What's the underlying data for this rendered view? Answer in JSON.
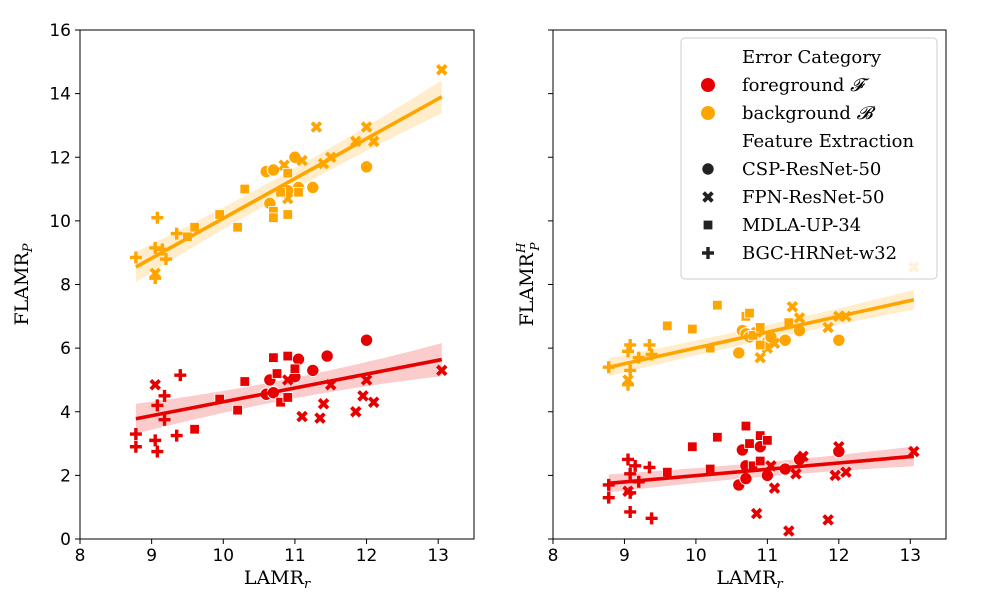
{
  "colors": {
    "foreground": "#e60000",
    "background": "#ffa500"
  },
  "chart_data": [
    {
      "type": "scatter",
      "panel": "left",
      "xlabel": "LAMR",
      "xlabel_sub": "r",
      "ylabel": "FLAMR",
      "ylabel_sub": "P",
      "xlim": [
        8,
        13.5
      ],
      "ylim": [
        0,
        16
      ],
      "xticks": [
        "8",
        "9",
        "10",
        "11",
        "12",
        "13"
      ],
      "yticks": [
        "0",
        "2",
        "4",
        "6",
        "8",
        "10",
        "12",
        "14",
        "16"
      ],
      "regression": {
        "foreground": {
          "x": [
            8.78,
            13.05
          ],
          "y": [
            3.78,
            5.64
          ]
        },
        "background": {
          "x": [
            8.78,
            13.05
          ],
          "y": [
            8.55,
            13.9
          ]
        }
      },
      "points": {
        "foreground": [
          [
            "circle",
            10.6,
            4.55
          ],
          [
            "circle",
            10.65,
            5.0
          ],
          [
            "circle",
            10.7,
            4.6
          ],
          [
            "circle",
            11.05,
            5.65
          ],
          [
            "circle",
            11.25,
            5.3
          ],
          [
            "circle",
            11.45,
            5.75
          ],
          [
            "circle",
            12.0,
            6.25
          ],
          [
            "circle",
            11.0,
            5.1
          ],
          [
            "cross",
            9.05,
            4.85
          ],
          [
            "cross",
            10.9,
            5.0
          ],
          [
            "cross",
            11.1,
            3.85
          ],
          [
            "cross",
            11.35,
            3.8
          ],
          [
            "cross",
            11.4,
            4.25
          ],
          [
            "cross",
            11.5,
            4.85
          ],
          [
            "cross",
            11.85,
            4.0
          ],
          [
            "cross",
            11.95,
            4.5
          ],
          [
            "cross",
            12.0,
            5.0
          ],
          [
            "cross",
            12.1,
            4.3
          ],
          [
            "cross",
            13.05,
            5.3
          ],
          [
            "square",
            9.6,
            3.45
          ],
          [
            "square",
            9.95,
            4.4
          ],
          [
            "square",
            10.2,
            4.05
          ],
          [
            "square",
            10.3,
            4.95
          ],
          [
            "square",
            10.7,
            5.7
          ],
          [
            "square",
            10.75,
            5.2
          ],
          [
            "square",
            10.8,
            4.3
          ],
          [
            "square",
            10.9,
            5.75
          ],
          [
            "square",
            10.9,
            4.45
          ],
          [
            "square",
            11.0,
            5.35
          ],
          [
            "plus",
            8.78,
            3.3
          ],
          [
            "plus",
            8.78,
            2.9
          ],
          [
            "plus",
            9.05,
            3.1
          ],
          [
            "plus",
            9.08,
            2.75
          ],
          [
            "plus",
            9.08,
            4.2
          ],
          [
            "plus",
            9.18,
            4.5
          ],
          [
            "plus",
            9.18,
            3.75
          ],
          [
            "plus",
            9.35,
            3.25
          ],
          [
            "plus",
            9.4,
            5.15
          ]
        ],
        "background": [
          [
            "circle",
            10.6,
            11.55
          ],
          [
            "circle",
            10.65,
            10.55
          ],
          [
            "circle",
            10.7,
            11.6
          ],
          [
            "circle",
            11.0,
            12.0
          ],
          [
            "circle",
            11.05,
            11.05
          ],
          [
            "circle",
            11.25,
            11.05
          ],
          [
            "circle",
            12.0,
            11.7
          ],
          [
            "circle",
            10.9,
            10.95
          ],
          [
            "cross",
            9.05,
            8.35
          ],
          [
            "cross",
            10.85,
            11.75
          ],
          [
            "cross",
            11.1,
            11.9
          ],
          [
            "cross",
            11.3,
            12.95
          ],
          [
            "cross",
            11.4,
            11.8
          ],
          [
            "cross",
            11.5,
            12.0
          ],
          [
            "cross",
            11.85,
            12.5
          ],
          [
            "cross",
            12.0,
            12.95
          ],
          [
            "cross",
            12.1,
            12.5
          ],
          [
            "cross",
            13.05,
            14.75
          ],
          [
            "cross",
            10.9,
            10.7
          ],
          [
            "square",
            9.5,
            9.5
          ],
          [
            "square",
            9.6,
            9.8
          ],
          [
            "square",
            9.95,
            10.2
          ],
          [
            "square",
            10.2,
            9.8
          ],
          [
            "square",
            10.3,
            11.0
          ],
          [
            "square",
            10.7,
            10.3
          ],
          [
            "square",
            10.7,
            10.1
          ],
          [
            "square",
            10.8,
            10.9
          ],
          [
            "square",
            10.9,
            11.5
          ],
          [
            "square",
            10.9,
            10.2
          ],
          [
            "square",
            11.05,
            10.9
          ],
          [
            "plus",
            8.78,
            8.85
          ],
          [
            "plus",
            9.05,
            9.15
          ],
          [
            "plus",
            9.05,
            8.2
          ],
          [
            "plus",
            9.08,
            10.1
          ],
          [
            "plus",
            9.15,
            9.1
          ],
          [
            "plus",
            9.2,
            8.8
          ],
          [
            "plus",
            9.35,
            9.6
          ]
        ]
      }
    },
    {
      "type": "scatter",
      "panel": "right",
      "xlabel": "LAMR",
      "xlabel_sub": "r",
      "ylabel": "FLAMR",
      "ylabel_sub": "P",
      "ylabel_sup": "H",
      "xlim": [
        8,
        13.5
      ],
      "ylim": [
        0,
        16
      ],
      "xticks": [
        "8",
        "9",
        "10",
        "11",
        "12",
        "13"
      ],
      "regression": {
        "foreground": {
          "x": [
            8.78,
            13.05
          ],
          "y": [
            1.75,
            2.6
          ]
        },
        "background": {
          "x": [
            8.78,
            13.05
          ],
          "y": [
            5.4,
            7.52
          ]
        }
      },
      "points": {
        "foreground": [
          [
            "circle",
            10.6,
            1.7
          ],
          [
            "circle",
            10.65,
            2.8
          ],
          [
            "circle",
            10.7,
            1.9
          ],
          [
            "circle",
            10.9,
            2.9
          ],
          [
            "circle",
            11.0,
            2.0
          ],
          [
            "circle",
            11.25,
            2.2
          ],
          [
            "circle",
            11.45,
            2.5
          ],
          [
            "circle",
            12.0,
            2.75
          ],
          [
            "circle",
            10.7,
            2.3
          ],
          [
            "cross",
            9.05,
            1.5
          ],
          [
            "cross",
            10.85,
            0.8
          ],
          [
            "cross",
            11.1,
            1.6
          ],
          [
            "cross",
            11.3,
            0.25
          ],
          [
            "cross",
            11.4,
            2.05
          ],
          [
            "cross",
            11.5,
            2.6
          ],
          [
            "cross",
            11.85,
            0.6
          ],
          [
            "cross",
            11.95,
            2.0
          ],
          [
            "cross",
            12.0,
            2.9
          ],
          [
            "cross",
            12.1,
            2.1
          ],
          [
            "cross",
            13.05,
            2.75
          ],
          [
            "cross",
            11.05,
            2.3
          ],
          [
            "square",
            9.95,
            2.9
          ],
          [
            "square",
            10.3,
            3.2
          ],
          [
            "square",
            10.7,
            3.55
          ],
          [
            "square",
            10.75,
            3.0
          ],
          [
            "square",
            10.8,
            2.3
          ],
          [
            "square",
            10.9,
            3.25
          ],
          [
            "square",
            10.9,
            2.45
          ],
          [
            "square",
            11.0,
            3.1
          ],
          [
            "square",
            10.2,
            2.2
          ],
          [
            "square",
            9.6,
            2.1
          ],
          [
            "plus",
            8.78,
            1.3
          ],
          [
            "plus",
            8.78,
            1.7
          ],
          [
            "plus",
            9.05,
            2.5
          ],
          [
            "plus",
            9.08,
            0.85
          ],
          [
            "plus",
            9.08,
            1.45
          ],
          [
            "plus",
            9.15,
            2.3
          ],
          [
            "plus",
            9.2,
            1.8
          ],
          [
            "plus",
            9.35,
            2.25
          ],
          [
            "plus",
            9.38,
            0.65
          ],
          [
            "plus",
            9.08,
            2.05
          ]
        ],
        "background": [
          [
            "circle",
            10.6,
            5.85
          ],
          [
            "circle",
            10.65,
            6.55
          ],
          [
            "circle",
            10.7,
            6.45
          ],
          [
            "circle",
            11.0,
            6.2
          ],
          [
            "circle",
            11.05,
            6.35
          ],
          [
            "circle",
            11.25,
            6.25
          ],
          [
            "circle",
            11.45,
            6.55
          ],
          [
            "circle",
            12.0,
            6.25
          ],
          [
            "circle",
            10.75,
            6.35
          ],
          [
            "cross",
            9.05,
            5.0
          ],
          [
            "cross",
            10.85,
            6.5
          ],
          [
            "cross",
            10.9,
            5.7
          ],
          [
            "cross",
            11.1,
            6.15
          ],
          [
            "cross",
            11.35,
            7.3
          ],
          [
            "cross",
            11.45,
            6.95
          ],
          [
            "cross",
            11.85,
            6.65
          ],
          [
            "cross",
            12.0,
            7.0
          ],
          [
            "cross",
            12.1,
            7.0
          ],
          [
            "cross",
            13.05,
            8.55
          ],
          [
            "cross",
            11.0,
            6.0
          ],
          [
            "square",
            9.6,
            6.7
          ],
          [
            "square",
            9.95,
            6.6
          ],
          [
            "square",
            10.3,
            7.35
          ],
          [
            "square",
            10.7,
            7.0
          ],
          [
            "square",
            10.75,
            7.1
          ],
          [
            "square",
            10.8,
            6.4
          ],
          [
            "square",
            10.9,
            6.65
          ],
          [
            "square",
            10.9,
            6.1
          ],
          [
            "square",
            10.2,
            6.0
          ],
          [
            "square",
            11.3,
            6.8
          ],
          [
            "plus",
            8.78,
            5.4
          ],
          [
            "plus",
            9.05,
            5.9
          ],
          [
            "plus",
            9.05,
            4.85
          ],
          [
            "plus",
            9.08,
            6.1
          ],
          [
            "plus",
            9.08,
            5.3
          ],
          [
            "plus",
            9.2,
            5.7
          ],
          [
            "plus",
            9.35,
            6.1
          ],
          [
            "plus",
            9.38,
            5.8
          ]
        ]
      }
    }
  ],
  "legend": {
    "placement": "top-right",
    "title_error": "Error Category",
    "foreground_label": "foreground",
    "foreground_symbol": "𝓕",
    "background_label": "background",
    "background_symbol": "𝓑",
    "title_feature": "Feature Extraction",
    "markers": [
      {
        "shape": "circle",
        "label": "CSP-ResNet-50"
      },
      {
        "shape": "cross",
        "label": "FPN-ResNet-50"
      },
      {
        "shape": "square",
        "label": "MDLA-UP-34"
      },
      {
        "shape": "plus",
        "label": "BGC-HRNet-w32"
      }
    ]
  }
}
